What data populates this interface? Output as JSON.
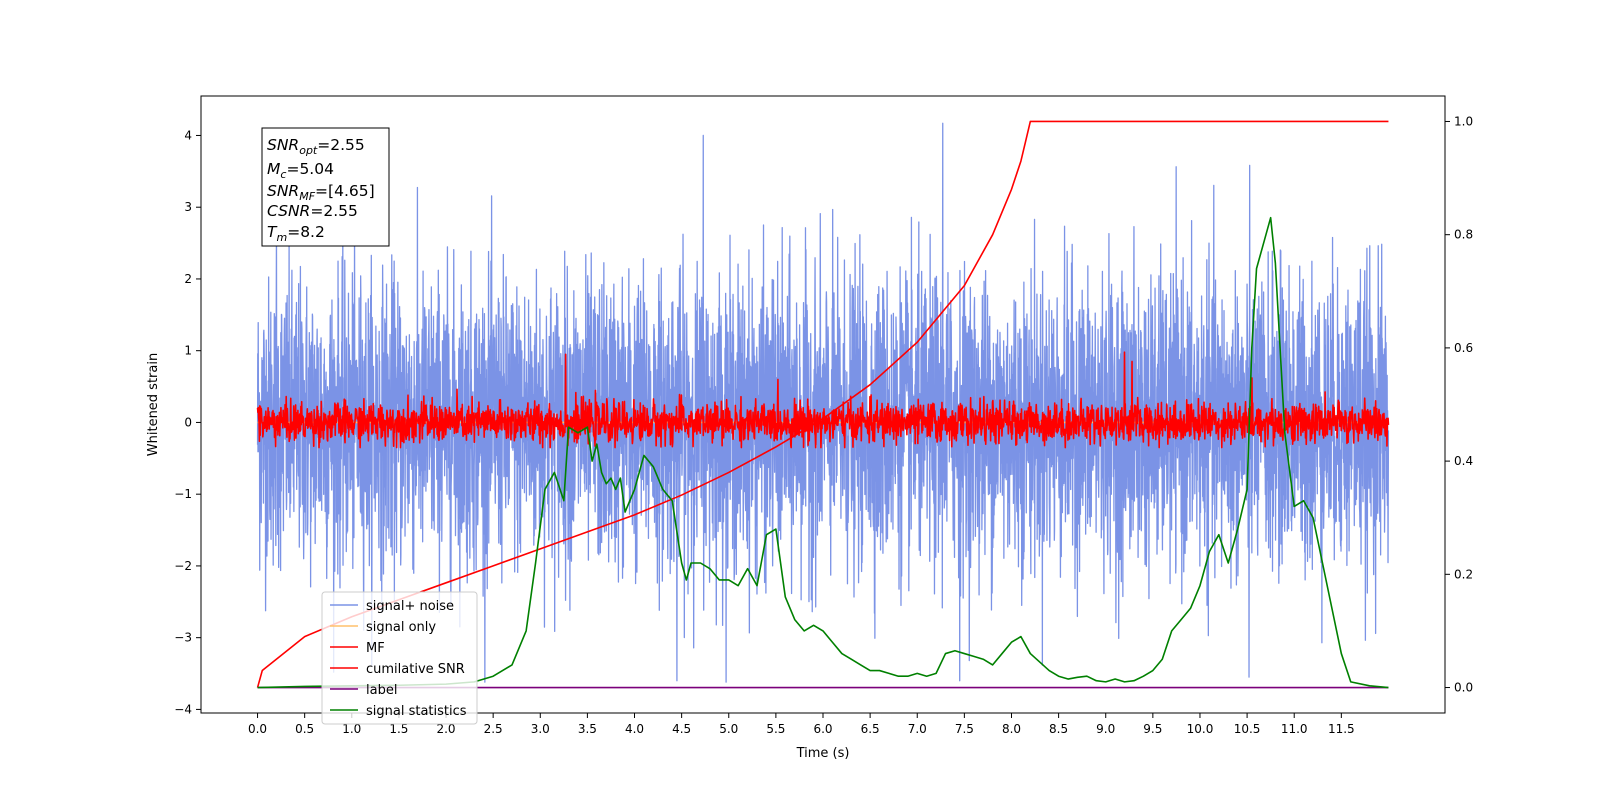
{
  "chart_data": {
    "type": "line",
    "title": "",
    "xlabel": "Time (s)",
    "ylabel": "Whitened strain",
    "xlim": [
      -0.6,
      12.6
    ],
    "ylim": [
      -4.05,
      4.55
    ],
    "ylim_right": [
      -0.045,
      1.045
    ],
    "grid": false,
    "legend_position": "lower-left",
    "x_ticks": [
      "0.0",
      "0.5",
      "1.0",
      "1.5",
      "2.0",
      "2.5",
      "3.0",
      "3.5",
      "4.0",
      "4.5",
      "5.0",
      "5.5",
      "6.0",
      "6.5",
      "7.0",
      "7.5",
      "8.0",
      "8.5",
      "9.0",
      "9.5",
      "10.0",
      "10.5",
      "11.0",
      "11.5"
    ],
    "x_tick_values": [
      0,
      0.5,
      1,
      1.5,
      2,
      2.5,
      3,
      3.5,
      4,
      4.5,
      5,
      5.5,
      6,
      6.5,
      7,
      7.5,
      8,
      8.5,
      9,
      9.5,
      10,
      10.5,
      11,
      11.5
    ],
    "y_ticks_left": [
      "−4",
      "−3",
      "−2",
      "−1",
      "0",
      "1",
      "2",
      "3",
      "4"
    ],
    "y_tick_values_left": [
      -4,
      -3,
      -2,
      -1,
      0,
      1,
      2,
      3,
      4
    ],
    "y_ticks_right": [
      "0.0",
      "0.2",
      "0.4",
      "0.6",
      "0.8",
      "1.0"
    ],
    "y_tick_values_right": [
      0,
      0.2,
      0.4,
      0.6,
      0.8,
      1.0
    ],
    "annotation": {
      "snr_opt": "2.55",
      "mc": "5.04",
      "snr_mf": "[4.65]",
      "csnr": "2.55",
      "tm": "8.2"
    },
    "series": [
      {
        "name": "signal+ noise",
        "axis": "left",
        "color": "#7b93e6",
        "kind": "noise",
        "x_range": [
          0,
          12
        ],
        "amplitude_std": 1.0,
        "y_range": [
          -3.62,
          4.17
        ],
        "peaks": [
          [
            0.2,
            2.7
          ],
          [
            4.73,
            4.0
          ],
          [
            7.27,
            4.17
          ],
          [
            10.52,
            3.6
          ],
          [
            4.45,
            -3.6
          ],
          [
            7.45,
            -3.6
          ],
          [
            10.52,
            -3.55
          ]
        ]
      },
      {
        "name": "signal only",
        "axis": "left",
        "color": "#ffc06b",
        "kind": "flat",
        "x_range": [
          0,
          12
        ],
        "value": 0
      },
      {
        "name": "MF",
        "axis": "left",
        "color": "#ff0000",
        "kind": "noise",
        "x_range": [
          0,
          12
        ],
        "amplitude_std": 0.14,
        "y_range": [
          -0.35,
          0.95
        ],
        "peaks": [
          [
            3.27,
            0.95
          ],
          [
            9.2,
            0.98
          ],
          [
            9.28,
            0.85
          ],
          [
            10.55,
            0.62
          ]
        ]
      },
      {
        "name": "cumilative SNR",
        "axis": "right",
        "color": "#ff0000",
        "kind": "cumulative",
        "x": [
          0,
          0.05,
          0.5,
          1,
          1.5,
          2,
          2.5,
          3,
          3.5,
          4,
          4.5,
          5,
          5.5,
          6,
          6.5,
          7,
          7.5,
          7.8,
          8,
          8.1,
          8.15,
          8.2,
          12
        ],
        "y": [
          0,
          0.03,
          0.09,
          0.125,
          0.155,
          0.185,
          0.215,
          0.245,
          0.275,
          0.305,
          0.34,
          0.38,
          0.425,
          0.475,
          0.535,
          0.61,
          0.71,
          0.8,
          0.88,
          0.93,
          0.965,
          1.0,
          1.0
        ]
      },
      {
        "name": "label",
        "axis": "right",
        "color": "#7b007b",
        "kind": "flat",
        "x_range": [
          0,
          12
        ],
        "value": 0
      },
      {
        "name": "signal statistics",
        "axis": "right",
        "color": "#008000",
        "kind": "line",
        "x": [
          0,
          0.5,
          1,
          1.5,
          2,
          2.3,
          2.5,
          2.7,
          2.85,
          2.95,
          3.05,
          3.15,
          3.25,
          3.3,
          3.4,
          3.5,
          3.55,
          3.6,
          3.65,
          3.7,
          3.75,
          3.8,
          3.85,
          3.9,
          4.0,
          4.1,
          4.2,
          4.3,
          4.4,
          4.5,
          4.55,
          4.6,
          4.7,
          4.8,
          4.9,
          5.0,
          5.1,
          5.2,
          5.3,
          5.4,
          5.5,
          5.6,
          5.7,
          5.8,
          5.9,
          6.0,
          6.1,
          6.2,
          6.3,
          6.4,
          6.5,
          6.6,
          6.7,
          6.8,
          6.9,
          7.0,
          7.1,
          7.2,
          7.3,
          7.4,
          7.5,
          7.6,
          7.7,
          7.8,
          7.9,
          8.0,
          8.1,
          8.2,
          8.3,
          8.4,
          8.5,
          8.6,
          8.7,
          8.8,
          8.9,
          9.0,
          9.1,
          9.2,
          9.3,
          9.4,
          9.5,
          9.6,
          9.7,
          9.8,
          9.9,
          10.0,
          10.1,
          10.2,
          10.3,
          10.4,
          10.5,
          10.55,
          10.6,
          10.7,
          10.75,
          10.8,
          10.9,
          11.0,
          11.1,
          11.2,
          11.3,
          11.5,
          11.6,
          11.8,
          12.0
        ],
        "y": [
          0.0,
          0.002,
          0.003,
          0.004,
          0.006,
          0.01,
          0.02,
          0.04,
          0.1,
          0.22,
          0.35,
          0.38,
          0.33,
          0.46,
          0.45,
          0.46,
          0.4,
          0.43,
          0.38,
          0.36,
          0.37,
          0.35,
          0.37,
          0.31,
          0.35,
          0.41,
          0.39,
          0.35,
          0.33,
          0.22,
          0.19,
          0.22,
          0.22,
          0.21,
          0.19,
          0.19,
          0.18,
          0.21,
          0.18,
          0.27,
          0.28,
          0.16,
          0.12,
          0.1,
          0.11,
          0.1,
          0.08,
          0.06,
          0.05,
          0.04,
          0.03,
          0.03,
          0.025,
          0.02,
          0.02,
          0.025,
          0.02,
          0.025,
          0.06,
          0.065,
          0.06,
          0.055,
          0.05,
          0.04,
          0.06,
          0.08,
          0.09,
          0.06,
          0.045,
          0.03,
          0.02,
          0.015,
          0.018,
          0.02,
          0.012,
          0.01,
          0.015,
          0.01,
          0.012,
          0.02,
          0.03,
          0.05,
          0.1,
          0.12,
          0.14,
          0.18,
          0.24,
          0.27,
          0.22,
          0.28,
          0.35,
          0.6,
          0.74,
          0.8,
          0.83,
          0.75,
          0.45,
          0.32,
          0.33,
          0.3,
          0.22,
          0.06,
          0.01,
          0.003,
          0.0
        ]
      }
    ]
  }
}
